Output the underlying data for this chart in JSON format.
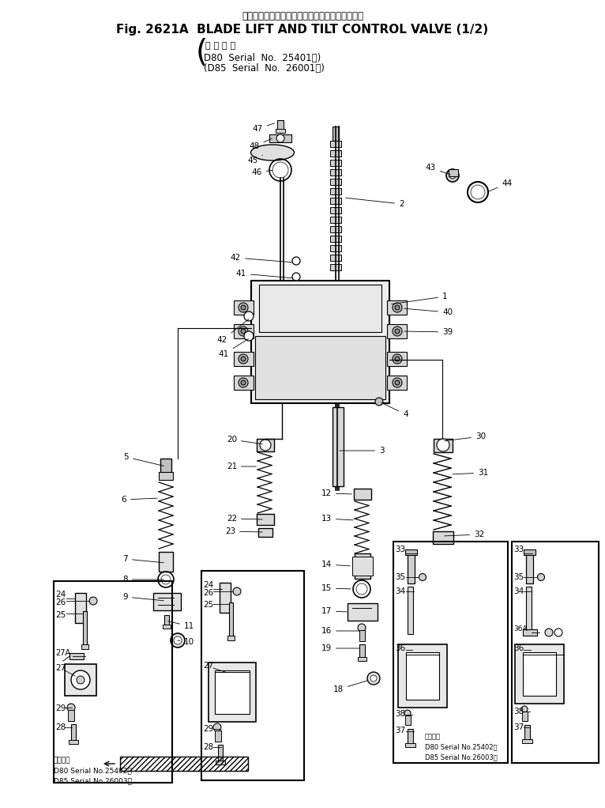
{
  "title_jp": "ブレードリフトおよびチルトコントロールバルブ",
  "title_en": "Fig. 2621A  BLADE LIFT AND TILT CONTROL VALVE (1/2)",
  "sub_jp": "適 用 号 機",
  "sub1": "D80  Serial  No.  25401～)",
  "sub2": "(D85  Serial  No.  26001～)",
  "footer_jp": "適用号機",
  "footer1": "D80 Serial No.25402～",
  "footer2": "D85 Serial No.26003～",
  "rfooter_jp": "適用号機",
  "rfooter1": "D80 Serial No.25402～",
  "rfooter2": "D85 Serial No.26003～",
  "bg": "#ffffff",
  "fg": "#000000"
}
